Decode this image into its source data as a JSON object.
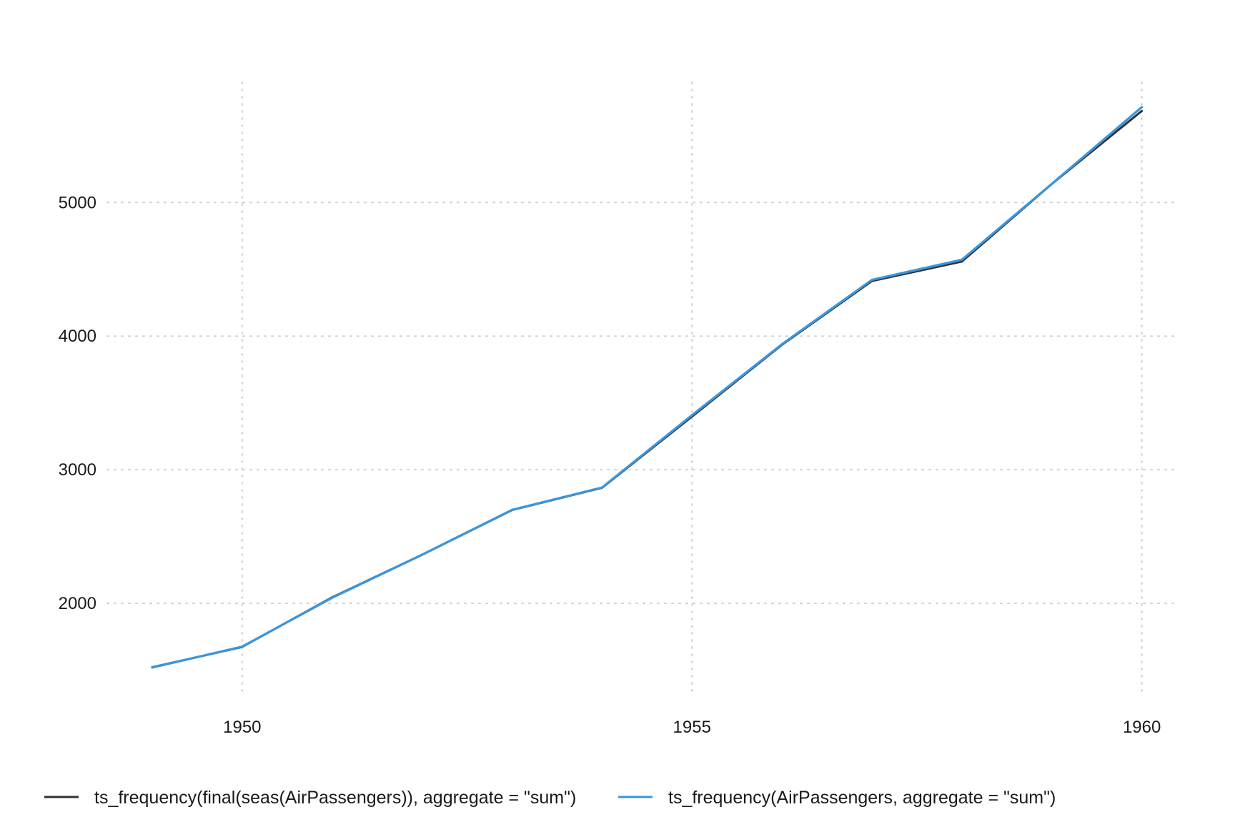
{
  "chart_data": {
    "type": "line",
    "title": "",
    "xlabel": "",
    "ylabel": "",
    "grid": true,
    "legend_placement": "bottom-left",
    "x": [
      1949,
      1950,
      1951,
      1952,
      1953,
      1954,
      1955,
      1956,
      1957,
      1958,
      1959,
      1960
    ],
    "x_ticks": [
      1950,
      1955,
      1960
    ],
    "y_ticks": [
      2000,
      3000,
      4000,
      5000
    ],
    "xlim": [
      1948.5,
      1960.4
    ],
    "ylim": [
      1300,
      5900
    ],
    "series": [
      {
        "name": "ts_frequency(final(seas(AirPassengers)), aggregate = \"sum\")",
        "color": "#333333",
        "values": [
          1522,
          1674,
          2045,
          2364,
          2698,
          2865,
          3398,
          3935,
          4412,
          4558,
          5139,
          5685
        ]
      },
      {
        "name": "ts_frequency(AirPassengers, aggregate = \"sum\")",
        "color": "#3a96dd",
        "values": [
          1520,
          1676,
          2042,
          2364,
          2700,
          2867,
          3408,
          3939,
          4421,
          4572,
          5140,
          5714
        ]
      }
    ]
  }
}
